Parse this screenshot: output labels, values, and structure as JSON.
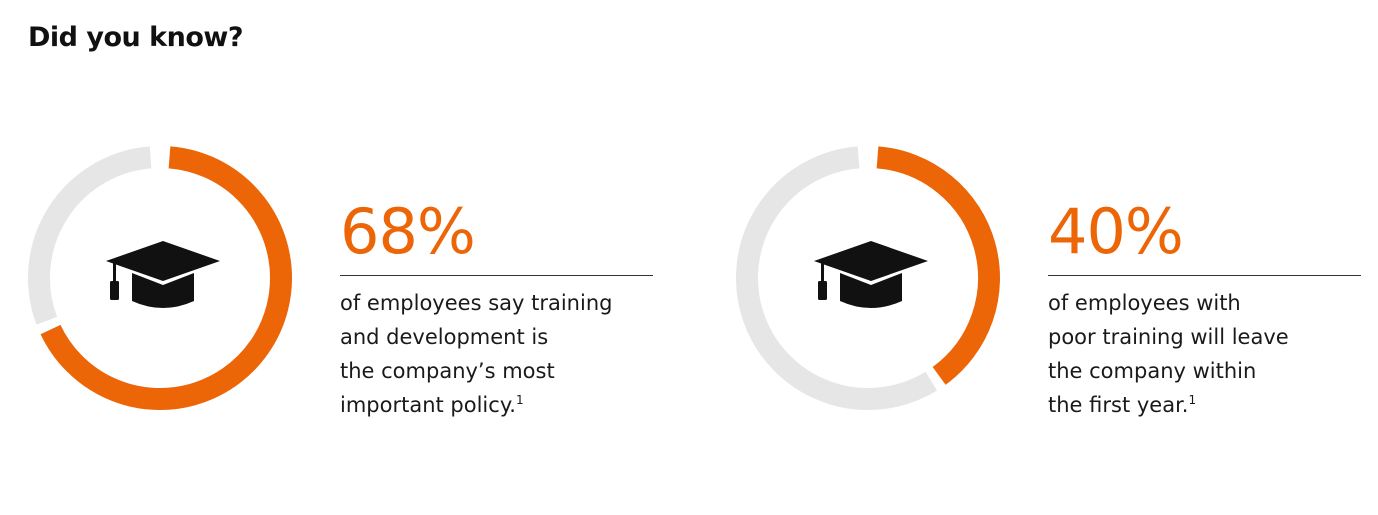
{
  "heading": "Did you know?",
  "colors": {
    "accent": "#ec6608",
    "track": "#e6e6e6",
    "icon": "#111111"
  },
  "chart_data": [
    {
      "type": "pie",
      "variant": "donut",
      "value": 68,
      "max": 100,
      "icon": "graduation-cap-icon",
      "label": "68%",
      "description_lines": [
        "of employees say training",
        "and development is",
        "the company’s most",
        "important policy."
      ],
      "footnote": "1"
    },
    {
      "type": "pie",
      "variant": "donut",
      "value": 40,
      "max": 100,
      "icon": "graduation-cap-icon",
      "label": "40%",
      "description_lines": [
        "of employees with",
        "poor training will leave",
        "the company within",
        "the first year."
      ],
      "footnote": "1"
    }
  ]
}
